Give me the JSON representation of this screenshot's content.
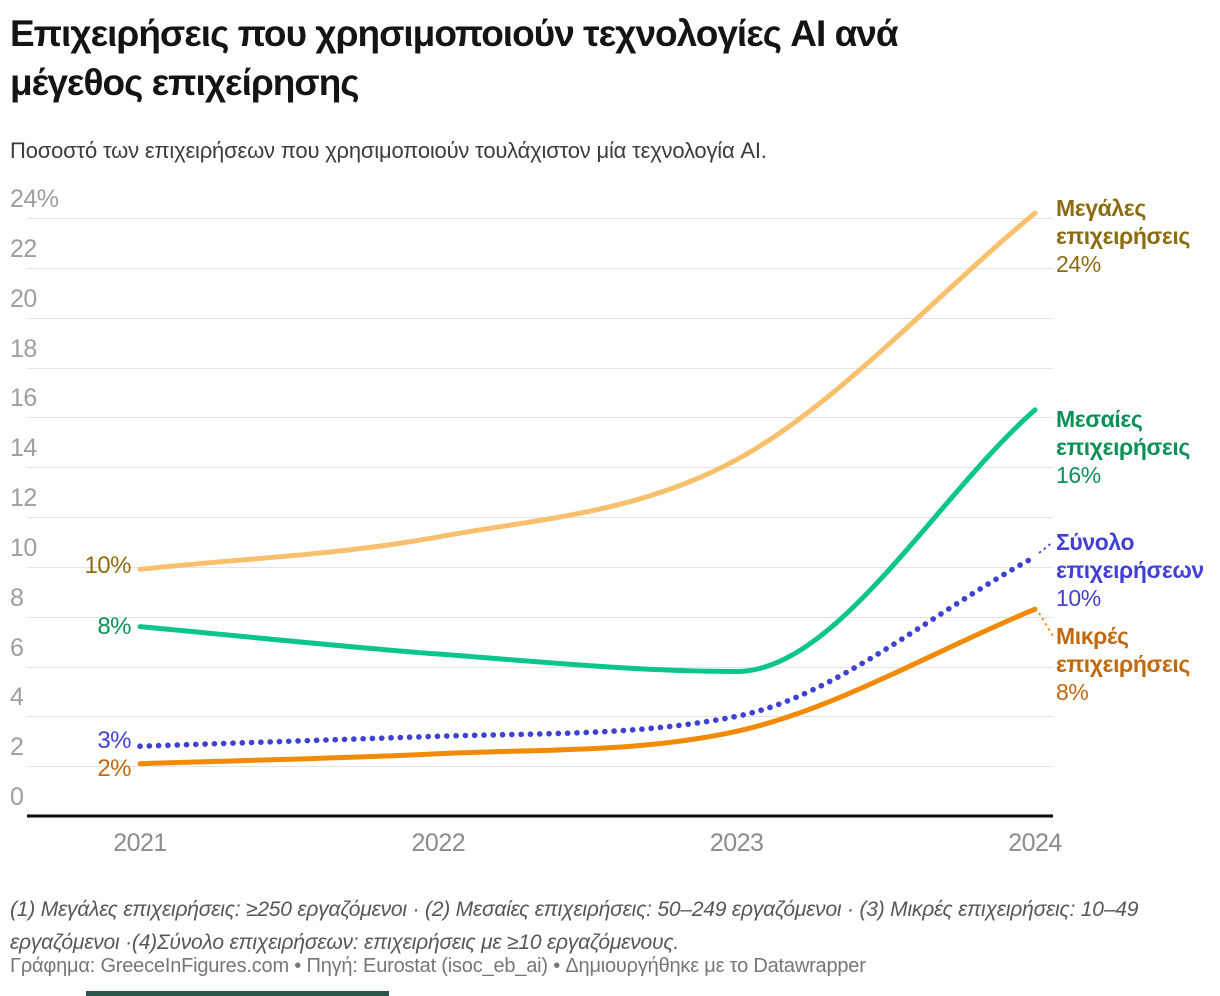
{
  "header": {
    "title_line1": "Επιχειρήσεις που χρησιμοποιούν τεχνολογίες AI ανά",
    "title_line2": "μέγεθος επιχείρησης",
    "subtitle": "Ποσοστό των επιχειρήσεων που χρησιμοποιούν τουλάχιστον μία τεχνολογία AI."
  },
  "chart_data": {
    "type": "line",
    "x": [
      2021,
      2022,
      2023,
      2024
    ],
    "x_tick_labels": [
      "2021",
      "2022",
      "2023",
      "2024"
    ],
    "ylim": [
      0,
      24
    ],
    "y_ticks": [
      0,
      2,
      4,
      6,
      8,
      10,
      12,
      14,
      16,
      18,
      20,
      22,
      24
    ],
    "y_tick_labels": [
      "0",
      "2",
      "4",
      "6",
      "8",
      "10",
      "12",
      "14",
      "16",
      "18",
      "20",
      "22",
      "24%"
    ],
    "grid": "horizontal",
    "legend_position": "labels-at-line-ends",
    "series": [
      {
        "id": "large",
        "name": "Μεγάλες επιχειρήσεις",
        "values": [
          9.9,
          11.2,
          14.3,
          24.2
        ],
        "start_label": "10%",
        "end_label": "24%",
        "line_color": "#f8c06c",
        "label_color": "#8d6c10",
        "style": "solid"
      },
      {
        "id": "medium",
        "name": "Μεσαίες επιχειρήσεις",
        "values": [
          7.6,
          6.5,
          5.8,
          16.3
        ],
        "start_label": "8%",
        "end_label": "16%",
        "line_color": "#0cc58d",
        "label_color": "#0b9158",
        "style": "solid"
      },
      {
        "id": "total",
        "name": "Σύνολο επιχειρήσεων",
        "values": [
          2.8,
          3.2,
          4.0,
          10.4
        ],
        "start_label": "3%",
        "end_label": "10%",
        "line_color": "#3d43d0",
        "label_color": "#4340d6",
        "style": "dotted"
      },
      {
        "id": "small",
        "name": "Μικρές επιχειρήσεις",
        "values": [
          2.1,
          2.5,
          3.4,
          8.3
        ],
        "start_label": "2%",
        "end_label": "8%",
        "line_color": "#f18a05",
        "label_color": "#c2690e",
        "style": "solid"
      }
    ],
    "axis_color": "#0a0a0a",
    "grid_color": "#e4e4e4",
    "y_label_color": "#9e9e9e",
    "x_label_color": "#8c8c8c"
  },
  "footer": {
    "notes": "(1) Μεγάλες επιχειρήσεις: ≥250 εργαζόμενοι · (2) Μεσαίες επιχειρήσεις: 50–249 εργαζόμενοι · (3) Μικρές επιχειρήσεις: 10–49 εργαζόμενοι ·(4)Σύνολο επιχειρήσεων: επιχειρήσεις με ≥10 εργαζόμενους.",
    "credit": "Γράφημα: GreeceInFigures.com • Πηγή: Eurostat (isoc_eb_ai) • Δημιουργήθηκε με το Datawrapper"
  }
}
